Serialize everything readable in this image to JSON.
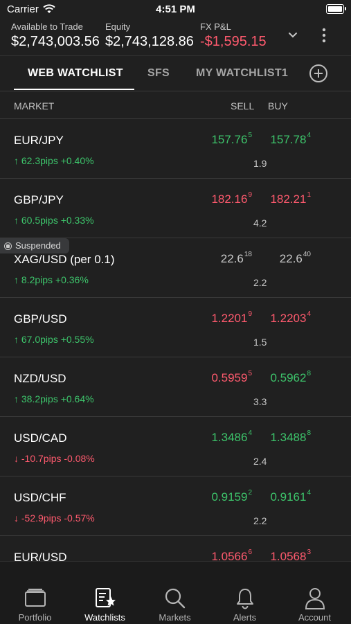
{
  "status_bar": {
    "carrier": "Carrier",
    "time": "4:51 PM"
  },
  "account": {
    "available_label": "Available to Trade",
    "available_value": "$2,743,003.56",
    "equity_label": "Equity",
    "equity_value": "$2,743,128.86",
    "pnl_label": "FX P&L",
    "pnl_value": "-$1,595.15"
  },
  "tabs": [
    {
      "label": "WEB WATCHLIST"
    },
    {
      "label": "SFS"
    },
    {
      "label": "MY WATCHLIST1"
    }
  ],
  "columns": {
    "market": "MARKET",
    "sell": "SELL",
    "buy": "BUY"
  },
  "rows": [
    {
      "pair": "EUR/JPY",
      "change": "↑ 62.3pips +0.40%",
      "direction": "up",
      "sell": "157.76",
      "sell_sup": "5",
      "sell_color": "up",
      "buy": "157.78",
      "buy_sup": "4",
      "buy_color": "up",
      "spread": "1.9"
    },
    {
      "pair": "GBP/JPY",
      "change": "↑ 60.5pips +0.33%",
      "direction": "up",
      "sell": "182.16",
      "sell_sup": "9",
      "sell_color": "down",
      "buy": "182.21",
      "buy_sup": "1",
      "buy_color": "down",
      "spread": "4.2"
    },
    {
      "pair": "XAG/USD (per 0.1)",
      "badge": "Suspended",
      "change": "↑ 8.2pips +0.36%",
      "direction": "up",
      "sell": "22.6",
      "sell_sup": "18",
      "sell_color": "muted",
      "buy": "22.6",
      "buy_sup": "40",
      "buy_color": "muted",
      "spread": "2.2"
    },
    {
      "pair": "GBP/USD",
      "change": "↑ 67.0pips +0.55%",
      "direction": "up",
      "sell": "1.2201",
      "sell_sup": "9",
      "sell_color": "down",
      "buy": "1.2203",
      "buy_sup": "4",
      "buy_color": "down",
      "spread": "1.5"
    },
    {
      "pair": "NZD/USD",
      "change": "↑ 38.2pips +0.64%",
      "direction": "up",
      "sell": "0.5959",
      "sell_sup": "5",
      "sell_color": "down",
      "buy": "0.5962",
      "buy_sup": "8",
      "buy_color": "up",
      "spread": "3.3"
    },
    {
      "pair": "USD/CAD",
      "change": "↓ -10.7pips -0.08%",
      "direction": "down",
      "sell": "1.3486",
      "sell_sup": "4",
      "sell_color": "up",
      "buy": "1.3488",
      "buy_sup": "8",
      "buy_color": "up",
      "spread": "2.4"
    },
    {
      "pair": "USD/CHF",
      "change": "↓ -52.9pips -0.57%",
      "direction": "down",
      "sell": "0.9159",
      "sell_sup": "2",
      "sell_color": "up",
      "buy": "0.9161",
      "buy_sup": "4",
      "buy_color": "up",
      "spread": "2.2"
    },
    {
      "pair": "EUR/USD",
      "change": "",
      "direction": "up",
      "sell": "1.0566",
      "sell_sup": "6",
      "sell_color": "down",
      "buy": "1.0568",
      "buy_sup": "3",
      "buy_color": "down",
      "spread": ""
    }
  ],
  "nav": [
    {
      "label": "Portfolio",
      "icon": "portfolio-icon"
    },
    {
      "label": "Watchlists",
      "icon": "watchlists-icon"
    },
    {
      "label": "Markets",
      "icon": "search-icon"
    },
    {
      "label": "Alerts",
      "icon": "bell-icon"
    },
    {
      "label": "Account",
      "icon": "person-icon"
    }
  ],
  "colors": {
    "up": "#3dc46b",
    "down": "#ff5a6e",
    "muted": "#c7c7c7",
    "background": "#202020"
  }
}
